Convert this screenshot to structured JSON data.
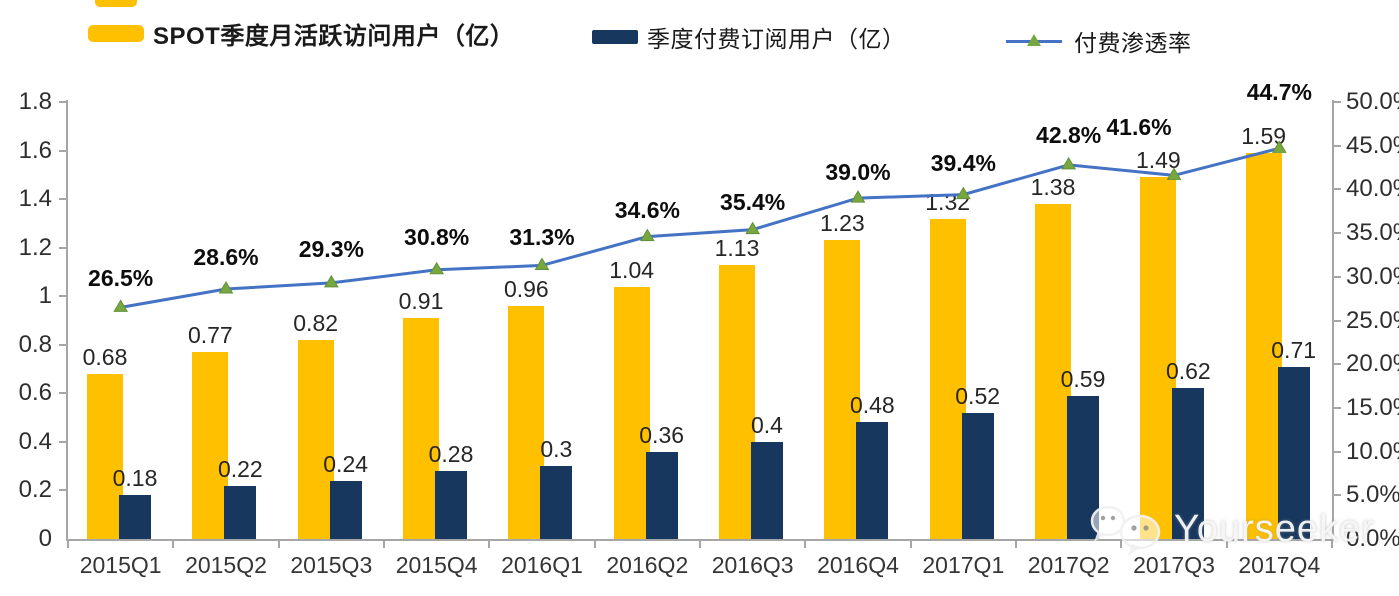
{
  "legend": {
    "items": [
      {
        "label": "SPOT季度月活跃访问用户（亿）",
        "type": "bar",
        "color": "#FFC000"
      },
      {
        "label": "季度付费订阅用户（亿）",
        "type": "bar",
        "color": "#17375E"
      },
      {
        "label": "付费渗透率",
        "type": "line",
        "color": "#4472C4",
        "marker_color": "#76A83F"
      }
    ]
  },
  "chart_data": {
    "type": "bar+line",
    "categories": [
      "2015Q1",
      "2015Q2",
      "2015Q3",
      "2015Q4",
      "2016Q1",
      "2016Q2",
      "2016Q3",
      "2016Q4",
      "2017Q1",
      "2017Q2",
      "2017Q3",
      "2017Q4"
    ],
    "series": [
      {
        "name": "SPOT季度月活跃访问用户（亿）",
        "type": "bar",
        "axis": "left",
        "color": "#FFC000",
        "values": [
          0.68,
          0.77,
          0.82,
          0.91,
          0.96,
          1.04,
          1.13,
          1.23,
          1.32,
          1.38,
          1.49,
          1.59
        ],
        "labels": [
          "0.68",
          "0.77",
          "0.82",
          "0.91",
          "0.96",
          "1.04",
          "1.13",
          "1.23",
          "1.32",
          "1.38",
          "1.49",
          "1.59"
        ]
      },
      {
        "name": "季度付费订阅用户（亿）",
        "type": "bar",
        "axis": "left",
        "color": "#17375E",
        "values": [
          0.18,
          0.22,
          0.24,
          0.28,
          0.3,
          0.36,
          0.4,
          0.48,
          0.52,
          0.59,
          0.62,
          0.71
        ],
        "labels": [
          "0.18",
          "0.22",
          "0.24",
          "0.28",
          "0.3",
          "0.36",
          "0.4",
          "0.48",
          "0.52",
          "0.59",
          "0.62",
          "0.71"
        ]
      },
      {
        "name": "付费渗透率",
        "type": "line",
        "axis": "right",
        "color": "#4472C4",
        "marker": "triangle",
        "marker_color": "#76A83F",
        "values": [
          26.5,
          28.6,
          29.3,
          30.8,
          31.3,
          34.6,
          35.4,
          39.0,
          39.4,
          42.8,
          41.6,
          44.7
        ],
        "labels": [
          "26.5%",
          "28.6%",
          "29.3%",
          "30.8%",
          "31.3%",
          "34.6%",
          "35.4%",
          "39.0%",
          "39.4%",
          "42.8%",
          "41.6%",
          "44.7%"
        ]
      }
    ],
    "left_axis": {
      "min": 0,
      "max": 1.8,
      "step": 0.2,
      "ticks": [
        "0",
        "0.2",
        "0.4",
        "0.6",
        "0.8",
        "1",
        "1.2",
        "1.4",
        "1.6",
        "1.8"
      ]
    },
    "right_axis": {
      "min": 0,
      "max": 50,
      "step": 5,
      "ticks": [
        "0.0%",
        "5.0%",
        "10.0%",
        "15.0%",
        "20.0%",
        "25.0%",
        "30.0%",
        "35.0%",
        "40.0%",
        "45.0%",
        "50.0%"
      ]
    },
    "grid": false,
    "legend_position": "top"
  },
  "watermark": {
    "text": "Yourseeker",
    "icon": "wechat-icon"
  }
}
